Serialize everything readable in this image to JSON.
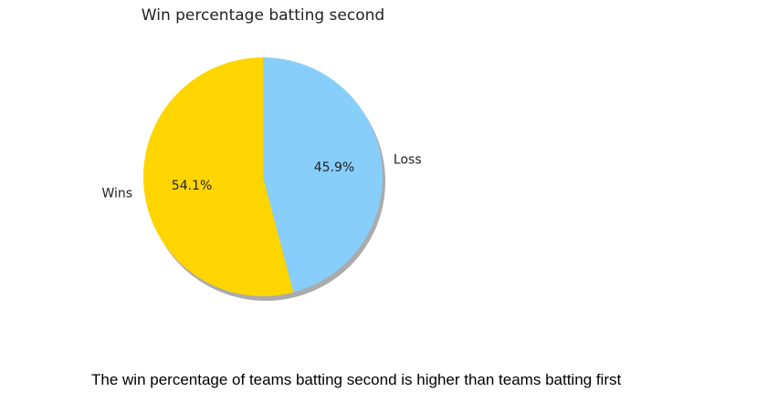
{
  "chart_data": {
    "type": "pie",
    "title": "Win percentage batting second",
    "labels": [
      "Wins",
      "Loss"
    ],
    "values": [
      54.1,
      45.9
    ],
    "value_labels": [
      "54.1%",
      "45.9%"
    ],
    "colors": [
      "#FFD500",
      "#87CEFA"
    ],
    "start_angle_deg": 90,
    "direction": "counterclockwise",
    "shadow": true,
    "legend": "none"
  },
  "caption": "The win percentage of teams batting second is higher than teams batting first"
}
